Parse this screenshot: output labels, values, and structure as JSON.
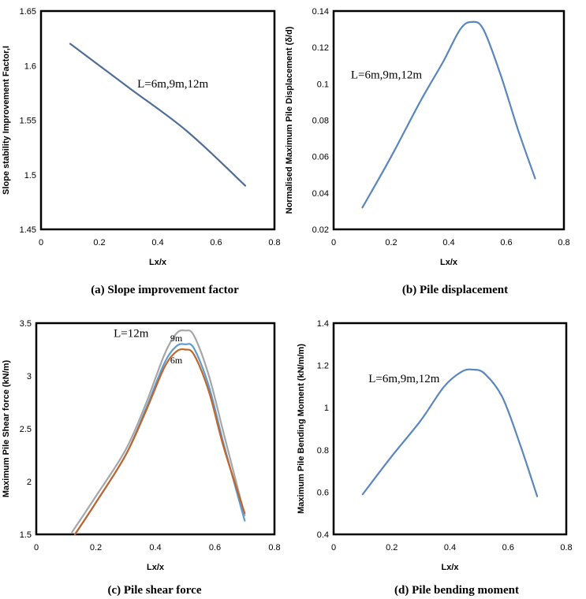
{
  "chart_data": [
    {
      "type": "line",
      "caption": "(a) Slope improvement factor",
      "xlabel": "Lx/x",
      "ylabel": "Slope stability Improvement Factor,I",
      "xlim": [
        0,
        0.8
      ],
      "ylim": [
        1.45,
        1.65
      ],
      "xticks": [
        "0",
        "0.2",
        "0.4",
        "0.6",
        "0.8"
      ],
      "yticks": [
        "1.45",
        "1.5",
        "1.55",
        "1.6",
        "1.65"
      ],
      "grid": false,
      "annotations": [
        {
          "text": "L=6m,9m,12m",
          "x": 0.33,
          "y": 1.58
        }
      ],
      "series": [
        {
          "color": "#4f6d96",
          "points": [
            [
              0.1,
              1.62
            ],
            [
              0.3,
              1.58
            ],
            [
              0.5,
              1.54
            ],
            [
              0.7,
              1.49
            ]
          ]
        }
      ]
    },
    {
      "type": "line",
      "caption": "(b) Pile displacement",
      "xlabel": "Lx/x",
      "ylabel": "Normalised Maximum Pile Displacement (δ/d)",
      "xlim": [
        0,
        0.8
      ],
      "ylim": [
        0.02,
        0.14
      ],
      "xticks": [
        "0",
        "0.2",
        "0.4",
        "0.6",
        "0.8"
      ],
      "yticks": [
        "0.02",
        "0.04",
        "0.06",
        "0.08",
        "0.1",
        "0.12",
        "0.14"
      ],
      "grid": false,
      "annotations": [
        {
          "text": "L=6m,9m,12m",
          "x": 0.06,
          "y": 0.103
        }
      ],
      "series": [
        {
          "color": "#5a86c0",
          "points": [
            [
              0.1,
              0.032
            ],
            [
              0.2,
              0.06
            ],
            [
              0.3,
              0.09
            ],
            [
              0.38,
              0.112
            ],
            [
              0.44,
              0.13
            ],
            [
              0.48,
              0.134
            ],
            [
              0.52,
              0.13
            ],
            [
              0.58,
              0.105
            ],
            [
              0.64,
              0.075
            ],
            [
              0.7,
              0.048
            ]
          ]
        }
      ]
    },
    {
      "type": "line",
      "caption": "(c) Pile shear force",
      "xlabel": "Lx/x",
      "ylabel": "Maximum Pile Shear force (kN/m)",
      "xlim": [
        0,
        0.8
      ],
      "ylim": [
        1.5,
        3.5
      ],
      "xticks": [
        "0",
        "0.2",
        "0.4",
        "0.6",
        "0.8"
      ],
      "yticks": [
        "1.5",
        "2",
        "2.5",
        "3",
        "3.5"
      ],
      "grid": false,
      "annotations": [
        {
          "text": "L=12m",
          "x": 0.26,
          "y": 3.37,
          "size": "large"
        },
        {
          "text": "9m",
          "x": 0.45,
          "y": 3.33,
          "size": "small"
        },
        {
          "text": "6m",
          "x": 0.45,
          "y": 3.12,
          "size": "small"
        }
      ],
      "series": [
        {
          "name": "12m",
          "color": "#a6a6a6",
          "points": [
            [
              0.12,
              1.52
            ],
            [
              0.2,
              1.86
            ],
            [
              0.3,
              2.3
            ],
            [
              0.37,
              2.75
            ],
            [
              0.43,
              3.2
            ],
            [
              0.47,
              3.4
            ],
            [
              0.5,
              3.43
            ],
            [
              0.53,
              3.38
            ],
            [
              0.58,
              3.0
            ],
            [
              0.63,
              2.45
            ],
            [
              0.7,
              1.68
            ]
          ]
        },
        {
          "name": "9m",
          "color": "#5b9bd5",
          "points": [
            [
              0.13,
              1.5
            ],
            [
              0.2,
              1.8
            ],
            [
              0.3,
              2.25
            ],
            [
              0.37,
              2.7
            ],
            [
              0.43,
              3.12
            ],
            [
              0.47,
              3.28
            ],
            [
              0.5,
              3.3
            ],
            [
              0.53,
              3.26
            ],
            [
              0.58,
              2.9
            ],
            [
              0.63,
              2.35
            ],
            [
              0.7,
              1.63
            ]
          ]
        },
        {
          "name": "6m",
          "color": "#c0652b",
          "points": [
            [
              0.13,
              1.5
            ],
            [
              0.2,
              1.8
            ],
            [
              0.3,
              2.25
            ],
            [
              0.37,
              2.68
            ],
            [
              0.43,
              3.08
            ],
            [
              0.47,
              3.23
            ],
            [
              0.5,
              3.25
            ],
            [
              0.53,
              3.2
            ],
            [
              0.58,
              2.85
            ],
            [
              0.63,
              2.32
            ],
            [
              0.7,
              1.7
            ]
          ]
        }
      ]
    },
    {
      "type": "line",
      "caption": "(d) Pile bending moment",
      "xlabel": "Lx/x",
      "ylabel": "Maximum Pile Bending Moment (kN/m/m)",
      "xlim": [
        0,
        0.8
      ],
      "ylim": [
        0.4,
        1.4
      ],
      "xticks": [
        "0",
        "0.2",
        "0.4",
        "0.6",
        "0.8"
      ],
      "yticks": [
        "0.4",
        "0.6",
        "0.8",
        "1",
        "1.2",
        "1.4"
      ],
      "grid": false,
      "annotations": [
        {
          "text": "L=6m,9m,12m",
          "x": 0.12,
          "y": 1.12
        }
      ],
      "series": [
        {
          "color": "#5a86c0",
          "points": [
            [
              0.1,
              0.59
            ],
            [
              0.2,
              0.77
            ],
            [
              0.3,
              0.94
            ],
            [
              0.38,
              1.1
            ],
            [
              0.44,
              1.17
            ],
            [
              0.48,
              1.18
            ],
            [
              0.52,
              1.16
            ],
            [
              0.58,
              1.05
            ],
            [
              0.64,
              0.83
            ],
            [
              0.7,
              0.58
            ]
          ]
        }
      ]
    }
  ]
}
